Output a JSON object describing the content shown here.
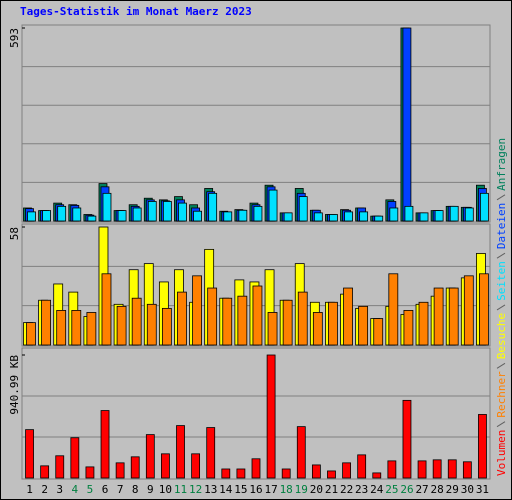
{
  "chart_data": [
    {
      "type": "bar",
      "title": "Tages-Statistik im Monat Maerz 2023",
      "ylim": [
        0,
        593
      ],
      "yticks": [
        593
      ],
      "series": [
        {
          "name": "Anfragen",
          "color": "#00805c",
          "values": [
            40,
            32,
            55,
            50,
            20,
            115,
            32,
            50,
            70,
            65,
            75,
            50,
            100,
            30,
            35,
            55,
            110,
            25,
            100,
            33,
            20,
            35,
            40,
            15,
            65,
            593,
            25,
            32,
            45,
            42,
            110
          ]
        },
        {
          "name": "Dateien",
          "color": "#0040ff",
          "values": [
            38,
            32,
            50,
            48,
            18,
            105,
            32,
            45,
            65,
            62,
            65,
            40,
            90,
            28,
            33,
            50,
            105,
            25,
            85,
            33,
            20,
            33,
            40,
            15,
            60,
            593,
            25,
            32,
            45,
            42,
            100
          ]
        },
        {
          "name": "Seiten",
          "color": "#00e0ff",
          "values": [
            28,
            32,
            45,
            40,
            15,
            85,
            32,
            40,
            60,
            60,
            55,
            30,
            85,
            28,
            33,
            45,
            95,
            25,
            75,
            25,
            20,
            28,
            28,
            15,
            40,
            45,
            25,
            32,
            45,
            40,
            85
          ]
        }
      ]
    },
    {
      "type": "bar",
      "ylim": [
        0,
        58
      ],
      "yticks": [
        58
      ],
      "series": [
        {
          "name": "Besuche",
          "color": "#ffff00",
          "values": [
            11,
            22,
            30,
            26,
            14,
            58,
            20,
            37,
            40,
            31,
            37,
            21,
            47,
            23,
            32,
            31,
            37,
            22,
            40,
            21,
            21,
            25,
            18,
            13,
            19,
            15,
            20,
            24,
            28,
            33,
            45
          ]
        },
        {
          "name": "Rechner",
          "color": "#ff8000",
          "values": [
            11,
            22,
            17,
            17,
            16,
            35,
            19,
            23,
            20,
            18,
            26,
            34,
            28,
            23,
            24,
            29,
            16,
            22,
            26,
            16,
            21,
            28,
            19,
            13,
            35,
            17,
            21,
            28,
            28,
            34,
            35
          ]
        }
      ]
    },
    {
      "type": "bar",
      "ylim": [
        0,
        940.99
      ],
      "yticks": [
        {
          "value": 940.99,
          "label": "940.99 KB"
        }
      ],
      "categories": [
        "1",
        "2",
        "3",
        "4",
        "5",
        "6",
        "7",
        "8",
        "9",
        "10",
        "11",
        "12",
        "13",
        "14",
        "15",
        "16",
        "17",
        "18",
        "19",
        "20",
        "21",
        "22",
        "23",
        "24",
        "25",
        "26",
        "27",
        "28",
        "29",
        "30",
        "31"
      ],
      "category_colors": [
        "#000",
        "#000",
        "#000",
        "#008040",
        "#008040",
        "#000",
        "#000",
        "#000",
        "#000",
        "#000",
        "#008040",
        "#008040",
        "#000",
        "#000",
        "#000",
        "#000",
        "#000",
        "#008040",
        "#008040",
        "#000",
        "#000",
        "#000",
        "#000",
        "#000",
        "#008040",
        "#008040",
        "#000",
        "#000",
        "#000",
        "#000",
        "#000"
      ],
      "series": [
        {
          "name": "Volumen",
          "color": "#ff0000",
          "values": [
            370,
            93,
            170,
            308,
            85,
            516,
            116,
            162,
            332,
            185,
            401,
            185,
            386,
            69,
            69,
            147,
            940.99,
            69,
            393,
            100,
            54,
            116,
            177,
            39,
            131,
            594,
            131,
            139,
            139,
            124,
            486
          ]
        }
      ]
    }
  ]
}
